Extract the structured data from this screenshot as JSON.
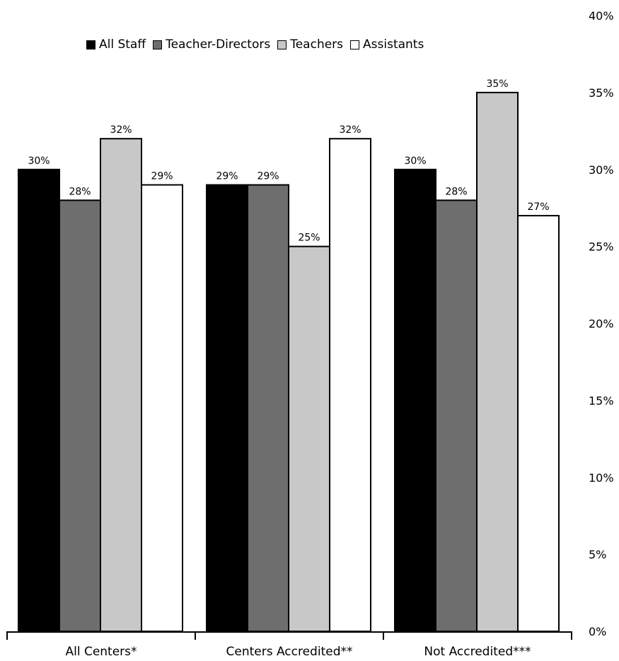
{
  "chart_data": {
    "type": "bar",
    "categories": [
      "All Centers*",
      "Centers Accredited**",
      "Not Accredited***"
    ],
    "series": [
      {
        "name": "All Staff",
        "color": "#000000",
        "values": [
          30,
          29,
          30
        ]
      },
      {
        "name": "Teacher-Directors",
        "color": "#6e6e6e",
        "values": [
          28,
          29,
          28
        ]
      },
      {
        "name": "Teachers",
        "color": "#c8c8c8",
        "values": [
          32,
          25,
          35
        ]
      },
      {
        "name": "Assistants",
        "color": "#ffffff",
        "values": [
          29,
          32,
          27
        ]
      }
    ],
    "data_labels": [
      [
        "30%",
        "28%",
        "32%",
        "29%"
      ],
      [
        "29%",
        "29%",
        "25%",
        "32%"
      ],
      [
        "30%",
        "28%",
        "35%",
        "27%"
      ]
    ],
    "yticks": [
      "0%",
      "5%",
      "10%",
      "15%",
      "20%",
      "25%",
      "30%",
      "35%",
      "40%"
    ],
    "ylim": [
      0,
      40
    ],
    "yaxis_position": "right",
    "legend_position": "top",
    "grid": false
  }
}
